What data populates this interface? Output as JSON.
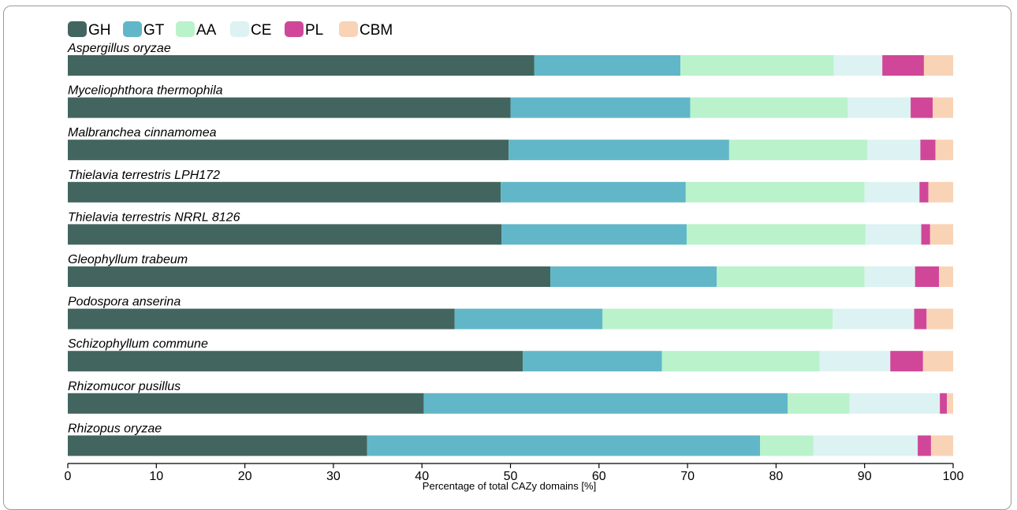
{
  "chart_data": {
    "type": "bar",
    "orientation": "horizontal",
    "stacked": true,
    "title": "",
    "xlabel": "Percentage of total CAZy domains [%]",
    "ylabel": "",
    "xlim": [
      0,
      100
    ],
    "xticks": [
      0,
      10,
      20,
      30,
      40,
      50,
      60,
      70,
      80,
      90,
      100
    ],
    "grid": false,
    "legend_position": "top-left",
    "categories": [
      "Aspergillus oryzae",
      "Myceliophthora thermophila",
      "Malbranchea cinnamomea",
      "Thielavia terrestris LPH172",
      "Thielavia terrestris NRRL 8126",
      "Gleophyllum trabeum",
      "Podospora anserina",
      "Schizophyllum commune",
      "Rhizomucor pusillus",
      "Rhizopus oryzae"
    ],
    "series": [
      {
        "name": "GH",
        "color": "#43655f",
        "values": [
          52.7,
          50.0,
          49.8,
          48.9,
          49.0,
          54.5,
          43.7,
          51.4,
          40.2,
          33.8
        ]
      },
      {
        "name": "GT",
        "color": "#61b7c8",
        "values": [
          16.5,
          20.3,
          24.9,
          20.9,
          20.9,
          18.8,
          16.7,
          15.7,
          41.1,
          44.4
        ]
      },
      {
        "name": "AA",
        "color": "#b9f2cb",
        "values": [
          17.3,
          17.8,
          15.6,
          20.2,
          20.2,
          16.7,
          26.0,
          17.8,
          7.0,
          6.0
        ]
      },
      {
        "name": "CE",
        "color": "#ddf2f2",
        "values": [
          5.5,
          7.1,
          6.0,
          6.2,
          6.3,
          5.7,
          9.2,
          8.0,
          10.2,
          11.8
        ]
      },
      {
        "name": "PL",
        "color": "#d04799",
        "values": [
          4.7,
          2.5,
          1.7,
          1.0,
          1.0,
          2.7,
          1.4,
          3.7,
          0.8,
          1.5
        ]
      },
      {
        "name": "CBM",
        "color": "#f9d3b6",
        "values": [
          3.3,
          2.3,
          2.0,
          2.8,
          2.6,
          1.6,
          3.0,
          3.4,
          0.7,
          2.5
        ]
      }
    ]
  }
}
